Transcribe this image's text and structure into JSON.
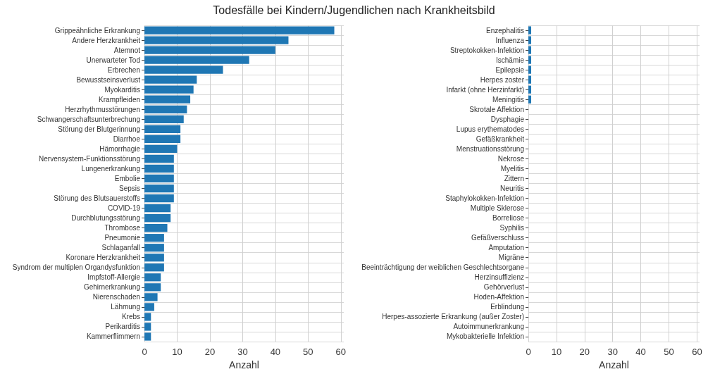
{
  "chart_data": [
    {
      "type": "bar",
      "orientation": "horizontal",
      "title": "Todesfälle bei Kindern/Jugendlichen nach Krankheitsbild",
      "xlabel": "Anzahl",
      "categories": [
        "Grippeähnliche Erkrankung",
        "Andere Herzkrankheit",
        "Atemnot",
        "Unerwarteter Tod",
        "Erbrechen",
        "Bewusstseinsverlust",
        "Myokarditis",
        "Krampfleiden",
        "Herzrhythmusstörungen",
        "Schwangerschaftsunterbrechung",
        "Störung der Blutgerinnung",
        "Diarrhoe",
        "Hämorrhagie",
        "Nervensystem-Funktionsstörung",
        "Lungenerkrankung",
        "Embolie",
        "Sepsis",
        "Störung des Blutsauerstoffs",
        "COVID-19",
        "Durchblutungsstörung",
        "Thrombose",
        "Pneumonie",
        "Schlaganfall",
        "Koronare Herzkrankheit",
        "Syndrom der multiplen Organdysfunktion",
        "Impfstoff-Allergie",
        "Gehirnerkrankung",
        "Nierenschaden",
        "Lähmung",
        "Krebs",
        "Perikarditis",
        "Kammerflimmern"
      ],
      "values": [
        58,
        44,
        40,
        32,
        24,
        16,
        15,
        14,
        13,
        12,
        11,
        11,
        10,
        9,
        9,
        9,
        9,
        9,
        8,
        8,
        7,
        6,
        6,
        6,
        6,
        5,
        5,
        4,
        3,
        2,
        2,
        2
      ],
      "color": "#1f77b4",
      "xlim": [
        0,
        60.9
      ],
      "xticks": [
        0,
        10,
        20,
        30,
        40,
        50,
        60
      ],
      "grid": true
    },
    {
      "type": "bar",
      "orientation": "horizontal",
      "xlabel": "Anzahl",
      "categories": [
        "Enzephalitis",
        "Influenza",
        "Streptokokken-Infektion",
        "Ischämie",
        "Epilepsie",
        "Herpes zoster",
        "Infarkt (ohne Herzinfarkt)",
        "Meningitis",
        "Skrotale Affektion",
        "Dysphagie",
        "Lupus erythematodes",
        "Gefäßkrankheit",
        "Menstruationsstörung",
        "Nekrose",
        "Myelitis",
        "Zittern",
        "Neuritis",
        "Staphylokokken-Infektion",
        "Multiple Sklerose",
        "Borreliose",
        "Syphilis",
        "Gefäßverschluss",
        "Amputation",
        "Migräne",
        "Beeinträchtigung der weiblichen Geschlechtsorgane",
        "Herzinsuffizienz",
        "Gehörverlust",
        "Hoden-Affektion",
        "Erblindung",
        "Herpes-assozierte Erkrankung (außer Zoster)",
        "Autoimmunerkrankung",
        "Mykobakterielle Infektion"
      ],
      "values": [
        1,
        1,
        1,
        1,
        1,
        1,
        1,
        1,
        0,
        0,
        0,
        0,
        0,
        0,
        0,
        0,
        0,
        0,
        0,
        0,
        0,
        0,
        0,
        0,
        0,
        0,
        0,
        0,
        0,
        0,
        0,
        0
      ],
      "color": "#1f77b4",
      "xlim": [
        0,
        60.9
      ],
      "xticks": [
        0,
        10,
        20,
        30,
        40,
        50,
        60
      ],
      "grid": true
    }
  ]
}
